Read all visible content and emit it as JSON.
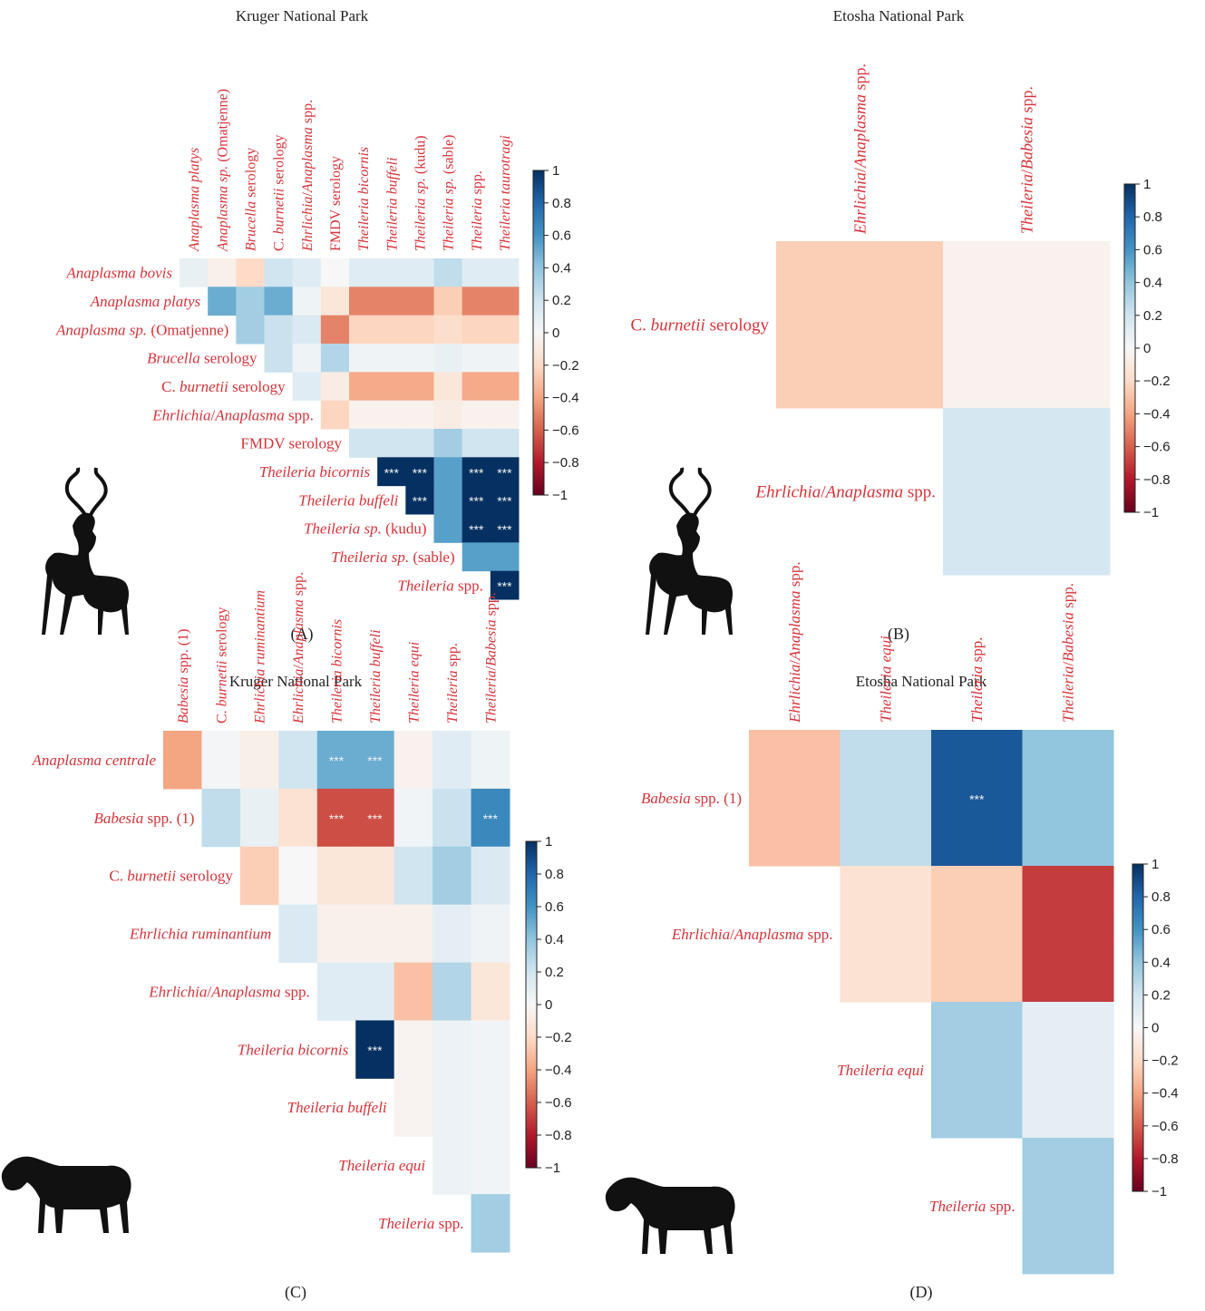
{
  "chart_data": [
    {
      "type": "heatmap",
      "panel": "(A)",
      "title": "Kruger National Park",
      "silhouette": "kudu-icon",
      "columns": [
        "Anaplasma platys",
        "Anaplasma sp. (Omatjenne)",
        "Brucella serology",
        "C. burnetii serology",
        "Ehrlichia/Anaplasma spp.",
        "FMDV serology",
        "Theileria bicornis",
        "Theileria buffeli",
        "Theileria sp. (kudu)",
        "Theileria sp. (sable)",
        "Theileria spp.",
        "Theileria taurotragi"
      ],
      "rows": [
        "Anaplasma bovis",
        "Anaplasma platys",
        "Anaplasma sp. (Omatjenne)",
        "Brucella serology",
        "C. burnetii serology",
        "Ehrlichia/Anaplasma spp.",
        "FMDV serology",
        "Theileria bicornis",
        "Theileria buffeli",
        "Theileria sp. (kudu)",
        "Theileria sp. (sable)",
        "Theileria spp."
      ],
      "values": [
        [
          0.08,
          -0.05,
          -0.2,
          0.2,
          0.12,
          0.0,
          0.12,
          0.12,
          0.12,
          0.25,
          0.12,
          0.12
        ],
        [
          null,
          0.5,
          0.35,
          0.5,
          0.05,
          -0.12,
          -0.5,
          -0.5,
          -0.5,
          -0.25,
          -0.5,
          -0.5
        ],
        [
          null,
          null,
          0.35,
          0.22,
          0.15,
          -0.5,
          -0.22,
          -0.22,
          -0.22,
          -0.18,
          -0.22,
          -0.22
        ],
        [
          null,
          null,
          null,
          0.22,
          0.05,
          0.3,
          0.04,
          0.04,
          0.04,
          0.08,
          0.04,
          0.04
        ],
        [
          null,
          null,
          null,
          null,
          0.12,
          -0.08,
          -0.38,
          -0.38,
          -0.38,
          -0.12,
          -0.38,
          -0.38
        ],
        [
          null,
          null,
          null,
          null,
          null,
          -0.22,
          -0.04,
          -0.04,
          -0.04,
          -0.08,
          -0.04,
          -0.04
        ],
        [
          null,
          null,
          null,
          null,
          null,
          null,
          0.2,
          0.2,
          0.2,
          0.35,
          0.2,
          0.2
        ],
        [
          null,
          null,
          null,
          null,
          null,
          null,
          null,
          1.0,
          1.0,
          0.55,
          1.0,
          1.0
        ],
        [
          null,
          null,
          null,
          null,
          null,
          null,
          null,
          null,
          1.0,
          0.55,
          1.0,
          1.0
        ],
        [
          null,
          null,
          null,
          null,
          null,
          null,
          null,
          null,
          null,
          0.55,
          1.0,
          1.0
        ],
        [
          null,
          null,
          null,
          null,
          null,
          null,
          null,
          null,
          null,
          null,
          0.55,
          0.55
        ],
        [
          null,
          null,
          null,
          null,
          null,
          null,
          null,
          null,
          null,
          null,
          null,
          1.0
        ]
      ],
      "annotations": [
        [
          null,
          null,
          null,
          null,
          null,
          null,
          null,
          null,
          null,
          null,
          null,
          null
        ],
        [
          null,
          null,
          null,
          null,
          null,
          null,
          null,
          null,
          null,
          null,
          null,
          null
        ],
        [
          null,
          null,
          null,
          null,
          null,
          null,
          null,
          null,
          null,
          null,
          null,
          null
        ],
        [
          null,
          null,
          null,
          null,
          null,
          null,
          null,
          null,
          null,
          null,
          null,
          null
        ],
        [
          null,
          null,
          null,
          null,
          null,
          null,
          null,
          null,
          null,
          null,
          null,
          null
        ],
        [
          null,
          null,
          null,
          null,
          null,
          null,
          null,
          null,
          null,
          null,
          null,
          null
        ],
        [
          null,
          null,
          null,
          null,
          null,
          null,
          null,
          null,
          null,
          null,
          null,
          null
        ],
        [
          null,
          null,
          null,
          null,
          null,
          null,
          null,
          "***",
          "***",
          null,
          "***",
          "***"
        ],
        [
          null,
          null,
          null,
          null,
          null,
          null,
          null,
          null,
          "***",
          null,
          "***",
          "***"
        ],
        [
          null,
          null,
          null,
          null,
          null,
          null,
          null,
          null,
          null,
          null,
          "***",
          "***"
        ],
        [
          null,
          null,
          null,
          null,
          null,
          null,
          null,
          null,
          null,
          null,
          null,
          null
        ],
        [
          null,
          null,
          null,
          null,
          null,
          null,
          null,
          null,
          null,
          null,
          null,
          "***"
        ]
      ],
      "colorbar_ticks": [
        "1",
        "0.8",
        "0.6",
        "0.4",
        "0.2",
        "0",
        "−0.2",
        "−0.4",
        "−0.6",
        "−0.8",
        "−1"
      ],
      "vmin": -1,
      "vmax": 1
    },
    {
      "type": "heatmap",
      "panel": "(B)",
      "title": "Etosha National Park",
      "silhouette": "kudu-icon",
      "columns": [
        "Ehrlichia/Anaplasma spp.",
        "Theileria/Babesia spp."
      ],
      "rows": [
        "C. burnetii serology",
        "Ehrlichia/Anaplasma spp."
      ],
      "values": [
        [
          -0.25,
          -0.04
        ],
        [
          null,
          0.18
        ]
      ],
      "annotations": [
        [
          null,
          null
        ],
        [
          null,
          null
        ]
      ],
      "colorbar_ticks": [
        "1",
        "0.8",
        "0.6",
        "0.4",
        "0.2",
        "0",
        "−0.2",
        "−0.4",
        "−0.6",
        "−0.8",
        "−1"
      ],
      "vmin": -1,
      "vmax": 1
    },
    {
      "type": "heatmap",
      "panel": "(C)",
      "title": "Kruger National Park",
      "silhouette": "zebra-icon",
      "columns": [
        "Babesia spp. (1)",
        "C. burnetii serology",
        "Ehrlichia ruminantium",
        "Ehrlichia/Anaplasma spp.",
        "Theileria bicornis",
        "Theileria buffeli",
        "Theileria equi",
        "Theileria spp.",
        "Theileria/Babesia spp."
      ],
      "rows": [
        "Anaplasma centrale",
        "Babesia spp. (1)",
        "C. burnetii serology",
        "Ehrlichia ruminantium",
        "Ehrlichia/Anaplasma spp.",
        "Theileria bicornis",
        "Theileria buffeli",
        "Theileria equi",
        "Theileria spp."
      ],
      "values": [
        [
          -0.4,
          0.02,
          -0.06,
          0.2,
          0.5,
          0.5,
          -0.04,
          0.12,
          0.05
        ],
        [
          null,
          0.25,
          0.08,
          -0.15,
          -0.65,
          -0.65,
          0.03,
          0.22,
          0.65
        ],
        [
          null,
          null,
          -0.25,
          0.0,
          -0.12,
          -0.12,
          0.2,
          0.35,
          0.15
        ],
        [
          null,
          null,
          null,
          0.15,
          -0.05,
          -0.05,
          -0.05,
          0.1,
          0.04
        ],
        [
          null,
          null,
          null,
          null,
          0.12,
          0.12,
          -0.3,
          0.3,
          -0.12
        ],
        [
          null,
          null,
          null,
          null,
          null,
          1.0,
          -0.03,
          0.06,
          0.03
        ],
        [
          null,
          null,
          null,
          null,
          null,
          null,
          -0.03,
          0.06,
          0.03
        ],
        [
          null,
          null,
          null,
          null,
          null,
          null,
          null,
          0.06,
          0.03
        ],
        [
          null,
          null,
          null,
          null,
          null,
          null,
          null,
          null,
          0.35
        ]
      ],
      "annotations": [
        [
          null,
          null,
          null,
          null,
          "***",
          "***",
          null,
          null,
          null
        ],
        [
          null,
          null,
          null,
          null,
          "***",
          "***",
          null,
          null,
          "***"
        ],
        [
          null,
          null,
          null,
          null,
          null,
          null,
          null,
          null,
          null
        ],
        [
          null,
          null,
          null,
          null,
          null,
          null,
          null,
          null,
          null
        ],
        [
          null,
          null,
          null,
          null,
          null,
          null,
          null,
          null,
          null
        ],
        [
          null,
          null,
          null,
          null,
          null,
          "***",
          null,
          null,
          null
        ],
        [
          null,
          null,
          null,
          null,
          null,
          null,
          null,
          null,
          null
        ],
        [
          null,
          null,
          null,
          null,
          null,
          null,
          null,
          null,
          null
        ],
        [
          null,
          null,
          null,
          null,
          null,
          null,
          null,
          null,
          null
        ]
      ],
      "colorbar_ticks": [
        "1",
        "0.8",
        "0.6",
        "0.4",
        "0.2",
        "0",
        "−0.2",
        "−0.4",
        "−0.6",
        "−0.8",
        "−1"
      ],
      "vmin": -1,
      "vmax": 1
    },
    {
      "type": "heatmap",
      "panel": "(D)",
      "title": "Etosha National Park",
      "silhouette": "zebra-icon",
      "columns": [
        "Ehrlichia/Anaplasma spp.",
        "Theileria equi",
        "Theileria spp.",
        "Theileria/Babesia spp."
      ],
      "rows": [
        "Babesia spp. (1)",
        "Ehrlichia/Anaplasma spp.",
        "Theileria equi",
        "Theileria spp."
      ],
      "values": [
        [
          -0.3,
          0.25,
          0.85,
          0.4
        ],
        [
          null,
          -0.15,
          -0.25,
          -0.7
        ],
        [
          null,
          null,
          0.35,
          0.1
        ],
        [
          null,
          null,
          null,
          0.35
        ]
      ],
      "annotations": [
        [
          null,
          null,
          "***",
          null
        ],
        [
          null,
          null,
          null,
          null
        ],
        [
          null,
          null,
          null,
          null
        ],
        [
          null,
          null,
          null,
          null
        ]
      ],
      "colorbar_ticks": [
        "1",
        "0.8",
        "0.6",
        "0.4",
        "0.2",
        "0",
        "−0.2",
        "−0.4",
        "−0.6",
        "−0.8",
        "−1"
      ],
      "vmin": -1,
      "vmax": 1
    }
  ],
  "italic_terms": [
    "Anaplasma",
    "Brucella",
    "Ehrlichia",
    "Theileria",
    "Babesia",
    "burnetii",
    "bovis",
    "platys",
    "bicornis",
    "buffeli",
    "taurotragi",
    "ruminantium",
    "centrale",
    "equi",
    "sp."
  ]
}
